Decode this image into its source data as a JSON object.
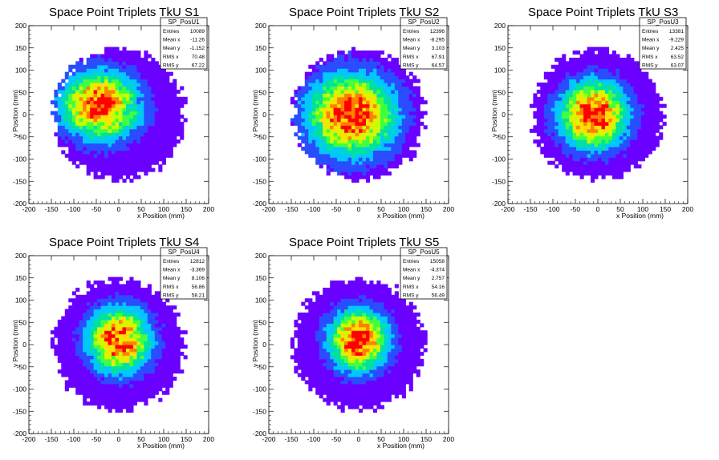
{
  "chart_data": [
    {
      "type": "heatmap",
      "title": "Space Point Triplets TkU S1",
      "xlabel": "x Position (mm)",
      "ylabel": "y Position (mm)",
      "xlim": [
        -200,
        200
      ],
      "ylim": [
        -200,
        200
      ],
      "xticks": [
        -200,
        -150,
        -100,
        -50,
        0,
        50,
        100,
        150,
        200
      ],
      "yticks": [
        -200,
        -150,
        -100,
        -50,
        0,
        50,
        100,
        150,
        200
      ],
      "colors": [
        "#6a00ff",
        "#2a4dff",
        "#00c8ff",
        "#00e0a0",
        "#40ff40",
        "#c8ff00",
        "#ffe000",
        "#ff8000",
        "#ff0000"
      ],
      "stats": {
        "name": "SP_PosU1",
        "rows": [
          {
            "label": "Entries",
            "value": "10089"
          },
          {
            "label": "Mean x",
            "value": "-11.26"
          },
          {
            "label": "Mean y",
            "value": "-1.152"
          },
          {
            "label": "RMS x",
            "value": "70.48"
          },
          {
            "label": "RMS y",
            "value": "67.22"
          }
        ]
      }
    },
    {
      "type": "heatmap",
      "title": "Space Point Triplets TkU S2",
      "xlabel": "x Position (mm)",
      "ylabel": "y Position (mm)",
      "xlim": [
        -200,
        200
      ],
      "ylim": [
        -200,
        200
      ],
      "xticks": [
        -200,
        -150,
        -100,
        -50,
        0,
        50,
        100,
        150,
        200
      ],
      "yticks": [
        -200,
        -150,
        -100,
        -50,
        0,
        50,
        100,
        150,
        200
      ],
      "colors": [
        "#6a00ff",
        "#2a4dff",
        "#00c8ff",
        "#00e0a0",
        "#40ff40",
        "#c8ff00",
        "#ffe000",
        "#ff8000",
        "#ff0000"
      ],
      "stats": {
        "name": "SP_PosU2",
        "rows": [
          {
            "label": "Entries",
            "value": "12396"
          },
          {
            "label": "Mean x",
            "value": "-8.295"
          },
          {
            "label": "Mean y",
            "value": "3.103"
          },
          {
            "label": "RMS x",
            "value": "67.91"
          },
          {
            "label": "RMS y",
            "value": "64.57"
          }
        ]
      }
    },
    {
      "type": "heatmap",
      "title": "Space Point Triplets TkU S3",
      "xlabel": "x Position (mm)",
      "ylabel": "y Position (mm)",
      "xlim": [
        -200,
        200
      ],
      "ylim": [
        -200,
        200
      ],
      "xticks": [
        -200,
        -150,
        -100,
        -50,
        0,
        50,
        100,
        150,
        200
      ],
      "yticks": [
        -200,
        -150,
        -100,
        -50,
        0,
        50,
        100,
        150,
        200
      ],
      "colors": [
        "#6a00ff",
        "#2a4dff",
        "#00c8ff",
        "#00e0a0",
        "#40ff40",
        "#c8ff00",
        "#ffe000",
        "#ff8000",
        "#ff0000"
      ],
      "stats": {
        "name": "SP_PosU3",
        "rows": [
          {
            "label": "Entries",
            "value": "13381"
          },
          {
            "label": "Mean x",
            "value": "-9.229"
          },
          {
            "label": "Mean y",
            "value": "2.425"
          },
          {
            "label": "RMS x",
            "value": "63.52"
          },
          {
            "label": "RMS y",
            "value": "63.07"
          }
        ]
      }
    },
    {
      "type": "heatmap",
      "title": "Space Point Triplets TkU S4",
      "xlabel": "x Position (mm)",
      "ylabel": "y Position (mm)",
      "xlim": [
        -200,
        200
      ],
      "ylim": [
        -200,
        200
      ],
      "xticks": [
        -200,
        -150,
        -100,
        -50,
        0,
        50,
        100,
        150,
        200
      ],
      "yticks": [
        -200,
        -150,
        -100,
        -50,
        0,
        50,
        100,
        150,
        200
      ],
      "colors": [
        "#6a00ff",
        "#2a4dff",
        "#00c8ff",
        "#00e0a0",
        "#40ff40",
        "#c8ff00",
        "#ffe000",
        "#ff8000",
        "#ff0000"
      ],
      "stats": {
        "name": "SP_PosU4",
        "rows": [
          {
            "label": "Entries",
            "value": "12812"
          },
          {
            "label": "Mean x",
            "value": "-3.369"
          },
          {
            "label": "Mean y",
            "value": "8.106"
          },
          {
            "label": "RMS x",
            "value": "56.86"
          },
          {
            "label": "RMS y",
            "value": "58.21"
          }
        ]
      }
    },
    {
      "type": "heatmap",
      "title": "Space Point Triplets TkU S5",
      "xlabel": "x Position (mm)",
      "ylabel": "y Position (mm)",
      "xlim": [
        -200,
        200
      ],
      "ylim": [
        -200,
        200
      ],
      "xticks": [
        -200,
        -150,
        -100,
        -50,
        0,
        50,
        100,
        150,
        200
      ],
      "yticks": [
        -200,
        -150,
        -100,
        -50,
        0,
        50,
        100,
        150,
        200
      ],
      "colors": [
        "#6a00ff",
        "#2a4dff",
        "#00c8ff",
        "#00e0a0",
        "#40ff40",
        "#c8ff00",
        "#ffe000",
        "#ff8000",
        "#ff0000"
      ],
      "stats": {
        "name": "SP_PosU5",
        "rows": [
          {
            "label": "Entries",
            "value": "15058"
          },
          {
            "label": "Mean x",
            "value": "-4.374"
          },
          {
            "label": "Mean y",
            "value": "2.757"
          },
          {
            "label": "RMS x",
            "value": "54.16"
          },
          {
            "label": "RMS y",
            "value": "56.49"
          }
        ]
      }
    }
  ]
}
